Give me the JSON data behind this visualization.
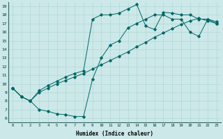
{
  "xlabel": "Humidex (Indice chaleur)",
  "bg_color": "#cce8e8",
  "line_color": "#006666",
  "xlim": [
    -0.5,
    23.5
  ],
  "ylim": [
    5.5,
    19.5
  ],
  "xticks": [
    0,
    1,
    2,
    3,
    4,
    5,
    6,
    7,
    8,
    9,
    10,
    11,
    12,
    13,
    14,
    15,
    16,
    17,
    18,
    19,
    20,
    21,
    22,
    23
  ],
  "yticks": [
    6,
    7,
    8,
    9,
    10,
    11,
    12,
    13,
    14,
    15,
    16,
    17,
    18,
    19
  ],
  "line1_x": [
    0,
    1,
    2,
    3,
    4,
    5,
    6,
    7,
    8,
    9,
    10,
    11,
    12,
    13,
    14,
    15,
    16,
    17,
    18,
    19,
    20,
    21,
    22,
    23
  ],
  "line1_y": [
    9.5,
    8.5,
    8.0,
    7.0,
    6.8,
    6.5,
    6.4,
    6.2,
    6.2,
    10.5,
    13.0,
    14.5,
    15.0,
    16.5,
    17.0,
    17.5,
    18.0,
    18.0,
    17.5,
    17.5,
    16.0,
    15.5,
    17.5,
    17.0
  ],
  "line2_x": [
    0,
    1,
    2,
    3,
    4,
    5,
    6,
    7,
    8,
    9,
    10,
    11,
    12,
    13,
    14,
    15,
    16,
    17,
    18,
    19,
    20,
    21,
    22,
    23
  ],
  "line2_y": [
    9.5,
    8.5,
    8.0,
    9.2,
    9.8,
    10.3,
    10.8,
    11.2,
    11.5,
    17.5,
    18.0,
    18.0,
    18.2,
    18.7,
    19.2,
    16.7,
    16.3,
    18.3,
    18.2,
    18.0,
    18.0,
    17.5,
    17.5,
    17.2
  ],
  "line3_x": [
    0,
    1,
    2,
    3,
    4,
    5,
    6,
    7,
    8,
    9,
    10,
    11,
    12,
    13,
    14,
    15,
    16,
    17,
    18,
    19,
    20,
    21,
    22,
    23
  ],
  "line3_y": [
    9.5,
    8.5,
    8.0,
    9.0,
    9.5,
    10.0,
    10.4,
    10.8,
    11.2,
    11.7,
    12.2,
    12.7,
    13.2,
    13.7,
    14.3,
    14.8,
    15.4,
    15.9,
    16.4,
    16.9,
    17.3,
    17.6,
    17.3,
    17.0
  ]
}
